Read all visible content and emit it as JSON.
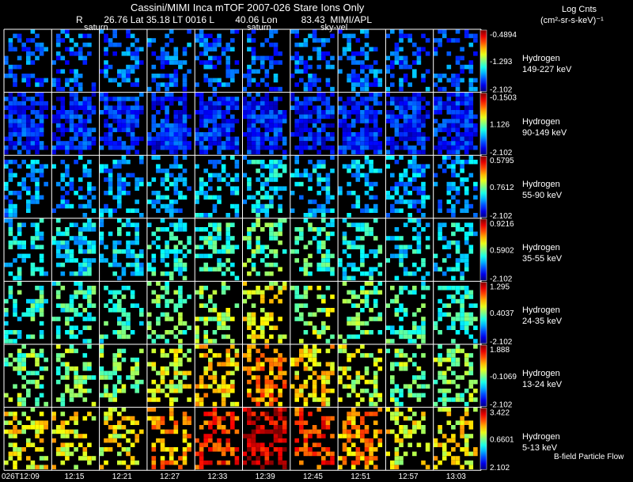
{
  "header": {
    "title": "Cassini/MIMI Inca mTOF  2007-026   Stare    Ions Only",
    "pos_line": "R        26.76 Lat 35.18 LT 0016 L        40.06 Lon         83.43  MIMI/APL",
    "cb_title_1": "Log Cnts",
    "cb_title_2": "(cm²-sr-s-keV)⁻¹"
  },
  "chart_data": {
    "type": "heatmap",
    "time_labels": [
      "026T12:09",
      "12:15",
      "12:21",
      "12:27",
      "12:33",
      "12:39",
      "12:45",
      "12:51",
      "12:57",
      "13:03"
    ],
    "rows": [
      {
        "species": "Hydrogen",
        "energy": "149-227 keV",
        "cb_max": "-0.4894",
        "cb_mid": "-1.293",
        "cb_min": "-2.102"
      },
      {
        "species": "Hydrogen",
        "energy": "90-149 keV",
        "cb_max": "-0.1503",
        "cb_mid": "1.126",
        "cb_min": "-2.102"
      },
      {
        "species": "Hydrogen",
        "energy": "55-90 keV",
        "cb_max": "0.5795",
        "cb_mid": "0.7612",
        "cb_min": "-2.102"
      },
      {
        "species": "Hydrogen",
        "energy": "35-55 keV",
        "cb_max": "0.9216",
        "cb_mid": "0.5902",
        "cb_min": "-2.102"
      },
      {
        "species": "Hydrogen",
        "energy": "24-35 keV",
        "cb_max": "1.295",
        "cb_mid": "0.4037",
        "cb_min": "-2.102"
      },
      {
        "species": "Hydrogen",
        "energy": "13-24 keV",
        "cb_max": "1.888",
        "cb_mid": "-0.1069",
        "cb_min": "-2.102"
      },
      {
        "species": "Hydrogen",
        "energy": "5-13 keV",
        "cb_max": "3.422",
        "cb_mid": "0.6601",
        "cb_min": "2.102"
      }
    ],
    "annotations": [
      "saturn",
      "saturn",
      "sky-vel"
    ],
    "legend_note": "B-field Particle Flow"
  }
}
